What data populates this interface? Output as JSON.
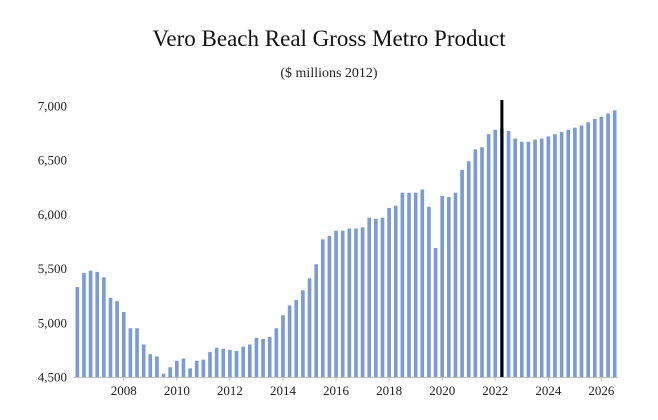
{
  "chart_data": {
    "type": "bar",
    "title": "Vero Beach Real Gross Metro Product",
    "subtitle": "($ millions 2012)",
    "xlabel": "",
    "ylabel": "",
    "ylim": [
      4500,
      7000
    ],
    "yticks": [
      4500,
      5000,
      5500,
      6000,
      6500,
      7000
    ],
    "ytick_labels": [
      "4,500",
      "5,000",
      "5,500",
      "6,000",
      "6,500",
      "7,000"
    ],
    "x_start": 2006.25,
    "x_step": 0.25,
    "xticks": [
      2008,
      2010,
      2012,
      2014,
      2016,
      2018,
      2020,
      2022,
      2024,
      2026
    ],
    "xtick_labels": [
      "2008",
      "2010",
      "2012",
      "2014",
      "2016",
      "2018",
      "2020",
      "2022",
      "2024",
      "2026"
    ],
    "forecast_marker_x": 2022.25,
    "bar_color": "#7b9bd1",
    "marker_color": "#000000",
    "values": [
      5330,
      5460,
      5480,
      5470,
      5420,
      5230,
      5200,
      5100,
      4950,
      4950,
      4800,
      4710,
      4690,
      4530,
      4590,
      4650,
      4670,
      4580,
      4650,
      4660,
      4730,
      4770,
      4760,
      4750,
      4740,
      4780,
      4800,
      4860,
      4850,
      4870,
      4950,
      5070,
      5160,
      5210,
      5300,
      5410,
      5540,
      5770,
      5800,
      5850,
      5850,
      5870,
      5870,
      5880,
      5970,
      5960,
      5970,
      6060,
      6080,
      6200,
      6200,
      6200,
      6230,
      6070,
      5690,
      6170,
      6160,
      6200,
      6410,
      6490,
      6600,
      6620,
      6740,
      6780,
      6790,
      6770,
      6700,
      6670,
      6670,
      6690,
      6700,
      6720,
      6740,
      6760,
      6780,
      6800,
      6820,
      6850,
      6880,
      6900,
      6930,
      6960
    ]
  }
}
